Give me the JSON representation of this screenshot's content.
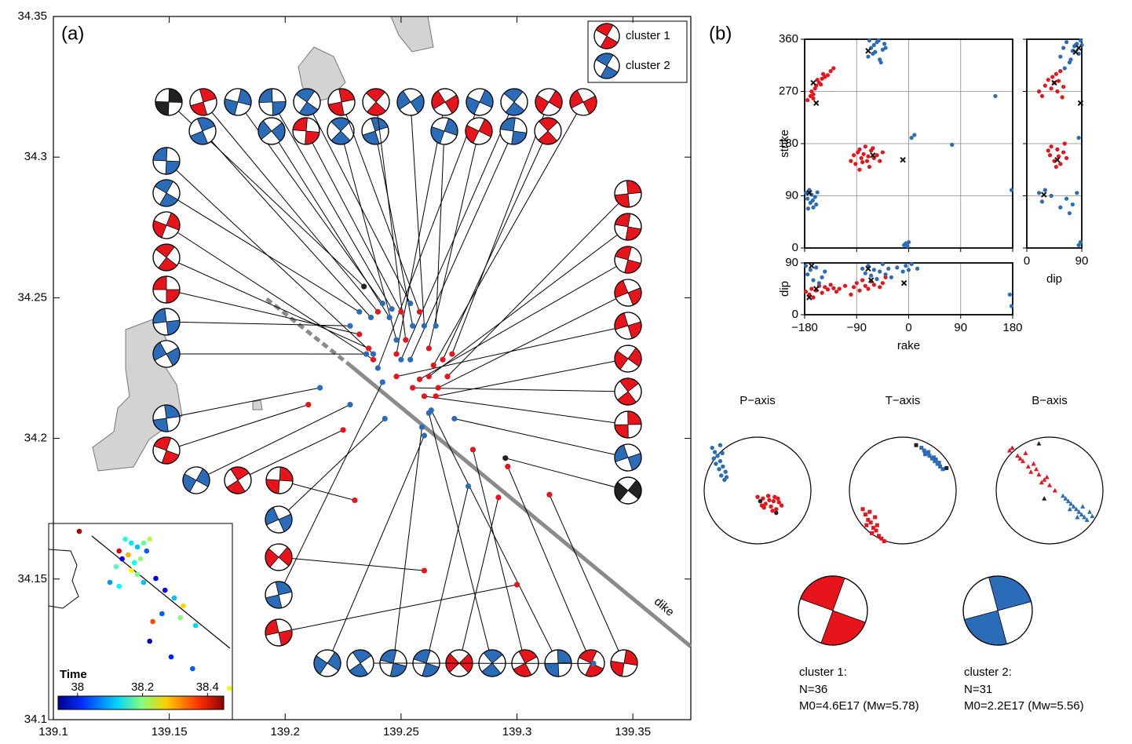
{
  "chart_data": [
    {
      "type": "map",
      "panel_label": "(a)",
      "annotation": "dike",
      "xlim": [
        139.1,
        139.375
      ],
      "ylim": [
        34.1,
        34.35
      ],
      "xticks": [
        139.1,
        139.15,
        139.2,
        139.25,
        139.3,
        139.35
      ],
      "yticks": [
        34.1,
        34.15,
        34.2,
        34.25,
        34.3,
        34.35
      ],
      "dike_line": {
        "x": [
          139.192,
          139.228,
          139.375
        ],
        "y": [
          34.2496,
          34.226,
          34.126
        ],
        "color": "#8a8a8a"
      },
      "series": [
        {
          "name": "cluster 1",
          "color": "#e8141c",
          "x": [
            139.232,
            139.236,
            139.24,
            139.238,
            139.248,
            139.25,
            139.252,
            139.258,
            139.262,
            139.264,
            139.262,
            139.268,
            139.27,
            139.272,
            139.266,
            139.258,
            139.255,
            139.26,
            139.265,
            139.248,
            139.21,
            139.225,
            139.23,
            139.26,
            139.3,
            139.296,
            139.281,
            139.314,
            139.292
          ],
          "y": [
            34.237,
            34.232,
            34.245,
            34.228,
            34.23,
            34.245,
            34.235,
            34.245,
            34.232,
            34.226,
            34.222,
            34.228,
            34.222,
            34.23,
            34.218,
            34.221,
            34.218,
            34.215,
            34.215,
            34.222,
            34.212,
            34.203,
            34.178,
            34.153,
            34.148,
            34.19,
            34.196,
            34.18,
            34.179
          ]
        },
        {
          "name": "cluster 2",
          "color": "#2a6cb8",
          "x": [
            139.228,
            139.232,
            139.237,
            139.242,
            139.245,
            139.246,
            139.254,
            139.255,
            139.265,
            139.26,
            139.238,
            139.25,
            139.242,
            139.24,
            139.235,
            139.254,
            139.248,
            139.215,
            139.228,
            139.243,
            139.259,
            139.262,
            139.263,
            139.26,
            139.273,
            139.279,
            139.333
          ],
          "y": [
            34.24,
            34.245,
            34.243,
            34.248,
            34.243,
            34.246,
            34.248,
            34.24,
            34.24,
            34.24,
            34.23,
            34.228,
            34.22,
            34.225,
            34.23,
            34.228,
            34.235,
            34.218,
            34.212,
            34.207,
            34.204,
            34.209,
            34.21,
            34.201,
            34.207,
            34.183,
            34.12
          ]
        },
        {
          "color": "#222222",
          "x": [
            139.234,
            139.295
          ],
          "y": [
            34.254,
            34.193
          ]
        }
      ],
      "inset": {
        "title": "Time",
        "clim": [
          37.94,
          38.45
        ],
        "cticks": [
          38,
          38.2,
          38.4
        ],
        "xlim": [
          139.0,
          139.6
        ],
        "ylim": [
          33.95,
          34.45
        ],
        "dike_line": {
          "x": [
            139.141,
            139.592
          ],
          "y": [
            34.418,
            34.132
          ]
        },
        "x": [
          139.1,
          139.23,
          139.25,
          139.27,
          139.29,
          139.31,
          139.33,
          139.24,
          139.26,
          139.28,
          139.3,
          139.32,
          139.22,
          139.27,
          139.29,
          139.31,
          139.2,
          139.23,
          139.35,
          139.38,
          139.41,
          139.44,
          139.37,
          139.34,
          139.43,
          139.48,
          139.33,
          139.4,
          139.47,
          139.59
        ],
        "y": [
          34.43,
          34.38,
          34.41,
          34.4,
          34.39,
          34.4,
          34.41,
          34.36,
          34.37,
          34.35,
          34.36,
          34.38,
          34.34,
          34.33,
          34.32,
          34.3,
          34.3,
          34.29,
          34.31,
          34.28,
          34.26,
          34.24,
          34.22,
          34.2,
          34.21,
          34.19,
          34.15,
          34.11,
          34.08,
          34.03
        ],
        "t": [
          38.43,
          38.4,
          38.15,
          38.12,
          38.1,
          38.18,
          38.22,
          38.0,
          38.3,
          38.14,
          38.2,
          38.05,
          38.17,
          38.25,
          38.19,
          38.1,
          38.08,
          38.13,
          37.98,
          38.0,
          38.1,
          38.28,
          38.05,
          38.35,
          38.2,
          38.11,
          37.97,
          38.02,
          38.05,
          38.25
        ]
      }
    },
    {
      "type": "scatter",
      "ylabel": "strike",
      "xlim": [
        -180,
        180
      ],
      "ylim": [
        0,
        360
      ],
      "xticks": [
        -180,
        -90,
        0,
        90,
        180
      ],
      "yticks": [
        0,
        90,
        180,
        270,
        360
      ],
      "xtick_labels": false,
      "grid": true,
      "series": [
        {
          "name": "cluster 1",
          "color": "#e8141c",
          "x": [
            -175,
            -170,
            -168,
            -165,
            -162,
            -160,
            -158,
            -155,
            -150,
            -148,
            -145,
            -140,
            -135,
            -130,
            -165,
            -152,
            -100,
            -95,
            -92,
            -88,
            -85,
            -82,
            -80,
            -78,
            -75,
            -72,
            -70,
            -68,
            -65,
            -60,
            -55,
            -50,
            -45,
            -85,
            -62
          ],
          "y": [
            255,
            262,
            270,
            258,
            275,
            280,
            290,
            285,
            292,
            300,
            295,
            298,
            305,
            310,
            265,
            282,
            150,
            160,
            145,
            165,
            170,
            155,
            148,
            162,
            175,
            150,
            158,
            140,
            168,
            155,
            160,
            150,
            165,
            135,
            172
          ]
        },
        {
          "name": "cluster 2",
          "color": "#2a6cb8",
          "x": [
            -178,
            -175,
            -172,
            -170,
            -168,
            -165,
            -162,
            -160,
            -158,
            -174,
            -166,
            -70,
            -65,
            -62,
            -60,
            -58,
            -55,
            -50,
            -45,
            -42,
            -40,
            -48,
            -52,
            -8,
            -5,
            -2,
            0,
            5,
            10,
            75,
            150,
            178,
            -68
          ],
          "y": [
            95,
            85,
            100,
            78,
            92,
            70,
            88,
            75,
            96,
            68,
            82,
            330,
            345,
            335,
            350,
            338,
            355,
            325,
            342,
            352,
            345,
            320,
            358,
            5,
            8,
            3,
            10,
            190,
            195,
            178,
            262,
            100,
            358
          ]
        },
        {
          "color": "#111111",
          "marker": "x",
          "x": [
            -172,
            -160,
            -70,
            -62,
            -10,
            -165
          ],
          "y": [
            95,
            250,
            340,
            160,
            152,
            285
          ]
        }
      ]
    },
    {
      "type": "scatter",
      "xlabel": "rake",
      "ylabel": "dip",
      "xlim": [
        -180,
        180
      ],
      "ylim": [
        0,
        90
      ],
      "xticks": [
        {
          "value": -180,
          "label": "−180"
        },
        {
          "value": -90,
          "label": "−90"
        },
        0,
        90,
        180
      ],
      "yticks": [
        0,
        90
      ],
      "grid": true,
      "series": [
        {
          "name": "cluster 1",
          "color": "#e8141c",
          "x": [
            -178,
            -172,
            -168,
            -165,
            -160,
            -155,
            -150,
            -145,
            -140,
            -135,
            -130,
            -125,
            -120,
            -110,
            -100,
            -95,
            -90,
            -85,
            -80,
            -75,
            -70,
            -65,
            -60,
            -55,
            -50,
            -45,
            -40
          ],
          "y": [
            40,
            35,
            45,
            30,
            42,
            50,
            38,
            48,
            44,
            52,
            46,
            40,
            45,
            50,
            35,
            48,
            55,
            42,
            60,
            50,
            45,
            58,
            52,
            62,
            48,
            55,
            65
          ]
        },
        {
          "name": "cluster 2",
          "color": "#2a6cb8",
          "x": [
            -178,
            -175,
            -170,
            -165,
            -160,
            -155,
            -150,
            -145,
            -80,
            -75,
            -70,
            -65,
            -60,
            -55,
            -50,
            -45,
            -40,
            -35,
            -30,
            -20,
            -10,
            -5,
            0,
            5,
            15,
            178,
            175
          ],
          "y": [
            85,
            70,
            78,
            60,
            82,
            55,
            65,
            75,
            80,
            72,
            85,
            68,
            78,
            62,
            75,
            88,
            70,
            80,
            65,
            82,
            75,
            85,
            78,
            88,
            80,
            15,
            35
          ]
        },
        {
          "color": "#111111",
          "marker": "x",
          "x": [
            -172,
            -160,
            -70,
            -65,
            -8,
            -168
          ],
          "y": [
            30,
            45,
            80,
            60,
            55,
            85
          ]
        }
      ]
    },
    {
      "type": "scatter",
      "xlabel": "dip",
      "xlim": [
        0,
        90
      ],
      "ylim": [
        0,
        360
      ],
      "xticks": [
        0,
        90
      ],
      "yticks": [
        0,
        90,
        180,
        270,
        360
      ],
      "ytick_labels": false,
      "grid": true,
      "series": [
        {
          "name": "cluster 1",
          "color": "#e8141c",
          "x": [
            20,
            25,
            30,
            35,
            40,
            42,
            45,
            48,
            50,
            52,
            55,
            58,
            60,
            38,
            45,
            50,
            55,
            60,
            65,
            40,
            48,
            52,
            35,
            62
          ],
          "y": [
            270,
            262,
            280,
            290,
            275,
            295,
            285,
            300,
            270,
            288,
            305,
            260,
            278,
            160,
            150,
            170,
            145,
            165,
            155,
            175,
            140,
            158,
            168,
            180
          ]
        },
        {
          "name": "cluster 2",
          "color": "#2a6cb8",
          "x": [
            55,
            60,
            65,
            70,
            75,
            80,
            85,
            88,
            62,
            72,
            78,
            82,
            20,
            25,
            30,
            40,
            55,
            65,
            70,
            75,
            82,
            85,
            90,
            85,
            88
          ],
          "y": [
            330,
            345,
            355,
            320,
            340,
            350,
            335,
            358,
            310,
            325,
            348,
            352,
            95,
            80,
            100,
            90,
            70,
            85,
            60,
            75,
            95,
            190,
            350,
            5,
            10
          ]
        },
        {
          "color": "#111111",
          "marker": "x",
          "x": [
            85,
            45,
            50,
            28,
            88,
            80
          ],
          "y": [
            345,
            285,
            152,
            92,
            250,
            338
          ]
        }
      ]
    },
    {
      "type": "stereonet",
      "title": "P−axis",
      "marker": "circle",
      "series": [
        {
          "name": "cluster 1",
          "color": "#e8141c",
          "x": [
            0.0,
            0.05,
            0.1,
            0.15,
            0.2,
            0.25,
            0.3,
            0.35,
            0.4,
            0.45,
            0.12,
            0.22,
            0.32,
            0.08,
            0.28,
            0.38
          ],
          "y": [
            -0.12,
            -0.2,
            -0.15,
            -0.25,
            -0.1,
            -0.3,
            -0.2,
            -0.35,
            -0.22,
            -0.28,
            -0.32,
            -0.18,
            -0.12,
            -0.28,
            -0.38,
            -0.15
          ]
        },
        {
          "name": "cluster 2",
          "color": "#2a6cb8",
          "x": [
            -0.85,
            -0.8,
            -0.75,
            -0.7,
            -0.65,
            -0.6,
            -0.78,
            -0.72,
            -0.68,
            -0.62,
            -0.58,
            -0.82,
            -0.7,
            -0.66
          ],
          "y": [
            0.8,
            0.72,
            0.65,
            0.55,
            0.45,
            0.35,
            0.5,
            0.4,
            0.28,
            0.2,
            0.25,
            0.6,
            0.85,
            0.7
          ]
        },
        {
          "color": "#222222",
          "x": [
            0.05,
            0.35
          ],
          "y": [
            -0.2,
            -0.42
          ]
        }
      ]
    },
    {
      "type": "stereonet",
      "title": "T−axis",
      "marker": "square",
      "series": [
        {
          "name": "cluster 1",
          "color": "#e8141c",
          "x": [
            -0.75,
            -0.7,
            -0.65,
            -0.6,
            -0.55,
            -0.5,
            -0.45,
            -0.4,
            -0.35,
            -0.68,
            -0.58,
            -0.48,
            -0.62,
            -0.52
          ],
          "y": [
            -0.35,
            -0.45,
            -0.55,
            -0.6,
            -0.7,
            -0.75,
            -0.85,
            -0.9,
            -0.95,
            -0.65,
            -0.8,
            -0.65,
            -0.4,
            -0.5
          ]
        },
        {
          "name": "cluster 2",
          "color": "#2a6cb8",
          "x": [
            0.35,
            0.4,
            0.45,
            0.5,
            0.55,
            0.6,
            0.65,
            0.7,
            0.75,
            0.48,
            0.58,
            0.68,
            0.42,
            0.62
          ],
          "y": [
            0.8,
            0.75,
            0.7,
            0.65,
            0.6,
            0.55,
            0.5,
            0.45,
            0.4,
            0.72,
            0.62,
            0.52,
            0.68,
            0.58
          ]
        },
        {
          "color": "#222222",
          "x": [
            0.25,
            0.82
          ],
          "y": [
            0.85,
            0.42
          ]
        }
      ]
    },
    {
      "type": "stereonet",
      "title": "B−axis",
      "marker": "triangle",
      "series": [
        {
          "name": "cluster 1",
          "color": "#e8141c",
          "x": [
            -0.75,
            -0.7,
            -0.6,
            -0.5,
            -0.45,
            -0.4,
            -0.35,
            -0.3,
            -0.2,
            -0.1,
            0.0,
            0.1,
            -0.55,
            -0.25,
            -0.15,
            -0.05
          ],
          "y": [
            0.75,
            0.8,
            0.65,
            0.55,
            0.7,
            0.45,
            0.35,
            0.5,
            0.3,
            0.2,
            0.1,
            0.0,
            0.6,
            0.4,
            0.15,
            0.25
          ]
        },
        {
          "name": "cluster 2",
          "color": "#2a6cb8",
          "x": [
            0.25,
            0.3,
            0.35,
            0.4,
            0.45,
            0.5,
            0.55,
            0.6,
            0.65,
            0.7,
            0.75,
            0.8,
            0.38,
            0.52,
            0.62
          ],
          "y": [
            -0.1,
            -0.15,
            -0.2,
            -0.25,
            -0.3,
            -0.35,
            -0.4,
            -0.45,
            -0.5,
            -0.55,
            -0.4,
            -0.48,
            -0.35,
            -0.5,
            -0.3
          ]
        },
        {
          "color": "#222222",
          "x": [
            -0.2,
            -0.1
          ],
          "y": [
            0.88,
            -0.15
          ]
        }
      ]
    }
  ],
  "panel_b_label": "(b)",
  "summary": [
    {
      "label": "cluster 1:",
      "n": "N=36",
      "moment": "M0=4.6E17 (Mw=5.78)",
      "color": "#e8141c"
    },
    {
      "label": "cluster 2:",
      "n": "N=31",
      "moment": "M0=2.2E17 (Mw=5.56)",
      "color": "#2a6cb8"
    }
  ]
}
